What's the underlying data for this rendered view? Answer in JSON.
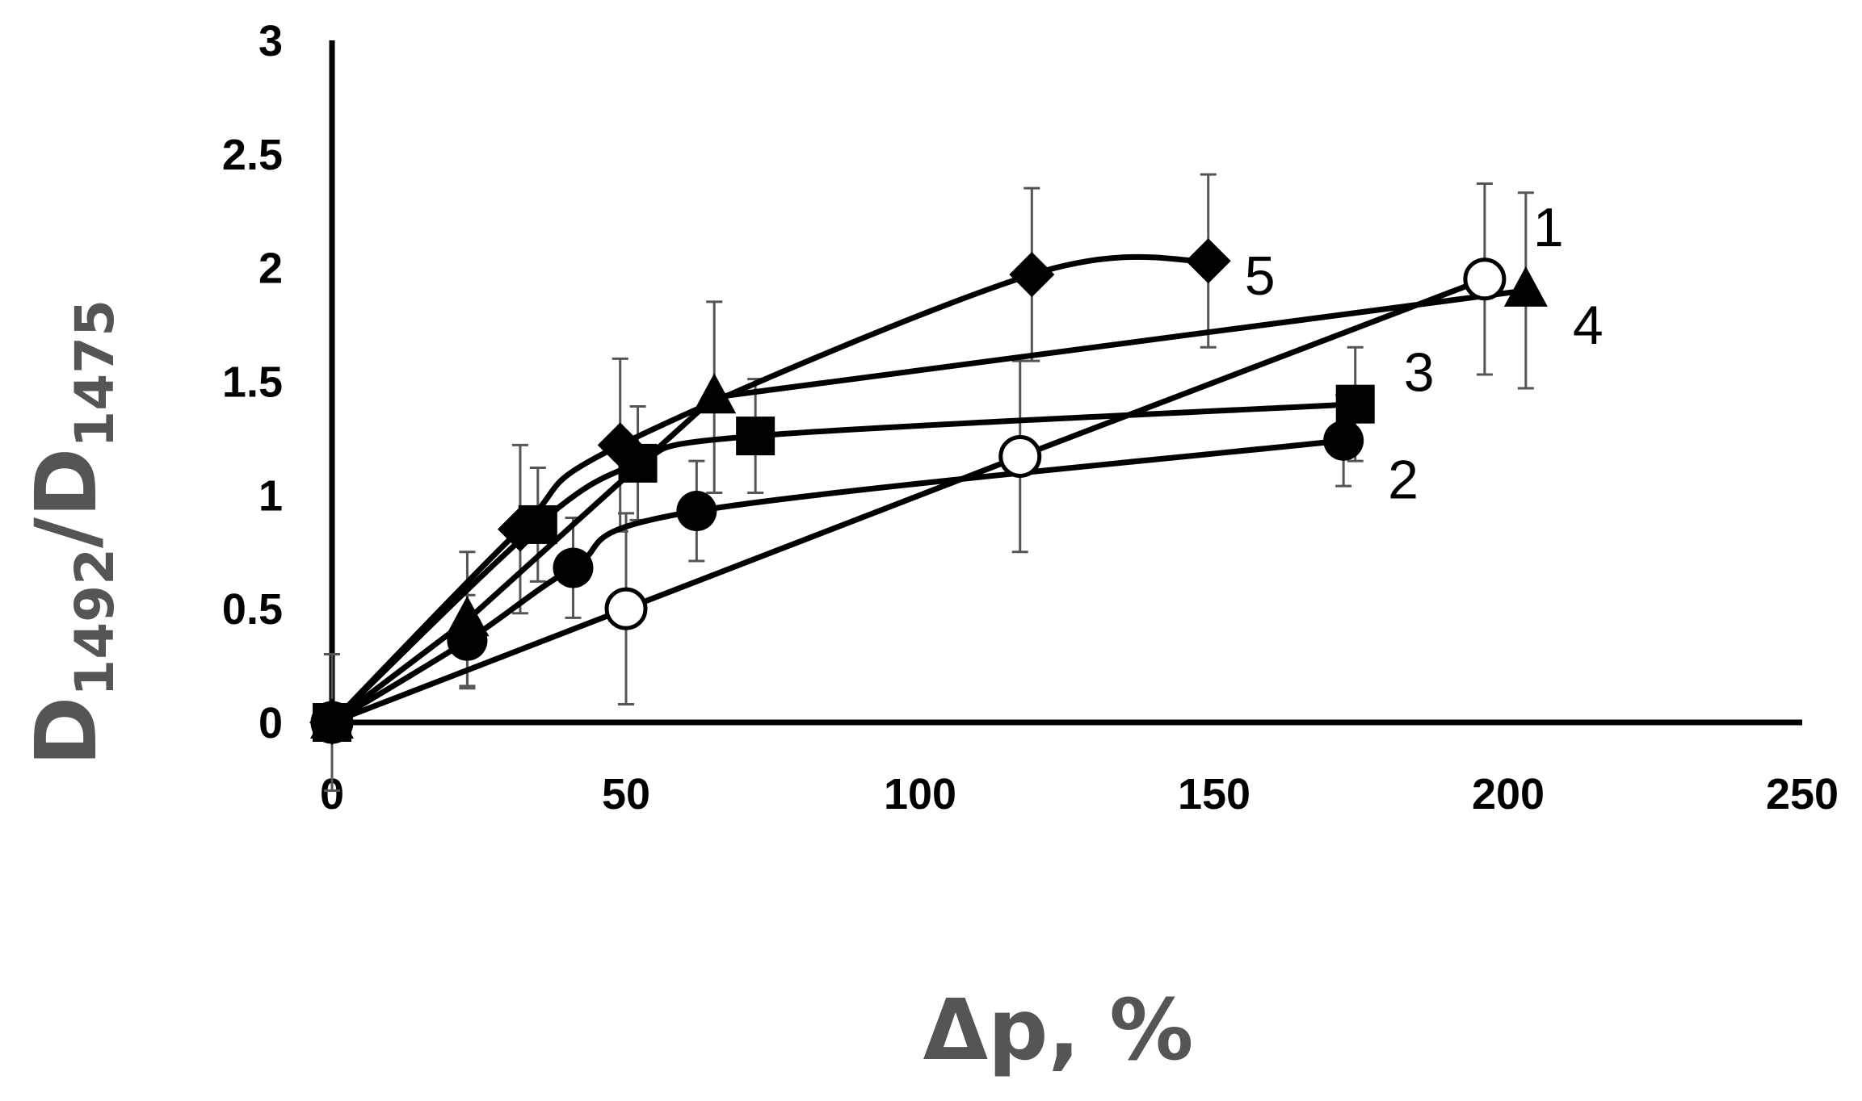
{
  "chart_data": {
    "type": "scatter",
    "x_axis": {
      "title": "Δp, %",
      "min": 0,
      "max": 250,
      "ticks": [
        "0",
        "50",
        "100",
        "150",
        "200",
        "250"
      ]
    },
    "y_axis": {
      "title_main": "D",
      "title_sub1": "1492",
      "title_sep": "/D",
      "title_sub2": "1475",
      "min": 0,
      "max": 3,
      "ticks": [
        "0",
        "0.5",
        "1",
        "1.5",
        "2",
        "2.5",
        "3"
      ]
    },
    "grid": false,
    "legend": "none",
    "series": [
      {
        "label": "1",
        "marker": "circle-open",
        "smooth": false,
        "points": [
          {
            "x": 0,
            "y": 0,
            "err": 0.3
          },
          {
            "x": 50,
            "y": 0.5,
            "err": 0.42
          },
          {
            "x": 117,
            "y": 1.17,
            "err": 0.42
          },
          {
            "x": 196,
            "y": 1.95,
            "err": 0.42
          }
        ]
      },
      {
        "label": "2",
        "marker": "circle",
        "smooth": true,
        "points": [
          {
            "x": 0,
            "y": 0,
            "err": 0.3
          },
          {
            "x": 23,
            "y": 0.36,
            "err": 0.2
          },
          {
            "x": 41,
            "y": 0.68,
            "err": 0.22
          },
          {
            "x": 62,
            "y": 0.93,
            "err": 0.22
          },
          {
            "x": 172,
            "y": 1.24,
            "err": 0.2
          }
        ]
      },
      {
        "label": "3",
        "marker": "square",
        "smooth": true,
        "points": [
          {
            "x": 0,
            "y": 0,
            "err": 0.3
          },
          {
            "x": 35,
            "y": 0.87,
            "err": 0.25
          },
          {
            "x": 52,
            "y": 1.14,
            "err": 0.25
          },
          {
            "x": 72,
            "y": 1.26,
            "err": 0.25
          },
          {
            "x": 174,
            "y": 1.4,
            "err": 0.25
          }
        ]
      },
      {
        "label": "4",
        "marker": "triangle",
        "smooth": false,
        "points": [
          {
            "x": 0,
            "y": 0,
            "err": 0.3
          },
          {
            "x": 23,
            "y": 0.45,
            "err": 0.3
          },
          {
            "x": 65,
            "y": 1.43,
            "err": 0.42
          },
          {
            "x": 203,
            "y": 1.9,
            "err": 0.43
          }
        ]
      },
      {
        "label": "5",
        "marker": "diamond",
        "smooth": true,
        "points": [
          {
            "x": 0,
            "y": 0,
            "err": 0.3
          },
          {
            "x": 32,
            "y": 0.85,
            "err": 0.37
          },
          {
            "x": 49,
            "y": 1.22,
            "err": 0.38
          },
          {
            "x": 119,
            "y": 1.97,
            "err": 0.38
          },
          {
            "x": 149,
            "y": 2.03,
            "err": 0.38
          }
        ]
      }
    ]
  }
}
